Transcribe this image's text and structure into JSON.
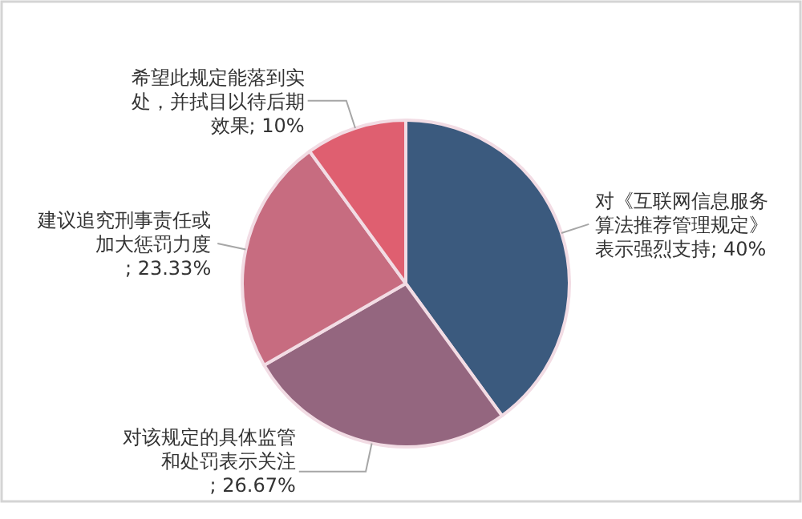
{
  "chart_data": {
    "type": "pie",
    "categories": [
      "对《互联网信息服务算法推荐管理规定》表示强烈支持",
      "对该规定的具体监管和处罚表示关注",
      "建议追究刑事责任或加大惩罚力度",
      "希望此规定能落到实处，并拭目以待后期效果"
    ],
    "values": [
      40,
      26.67,
      23.33,
      10
    ],
    "colors": [
      "#3b5a7e",
      "#94667f",
      "#c76c80",
      "#df5f70"
    ],
    "value_labels": [
      "; 40%",
      "; 26.67%",
      "; 23.33%",
      "; 10%"
    ]
  }
}
